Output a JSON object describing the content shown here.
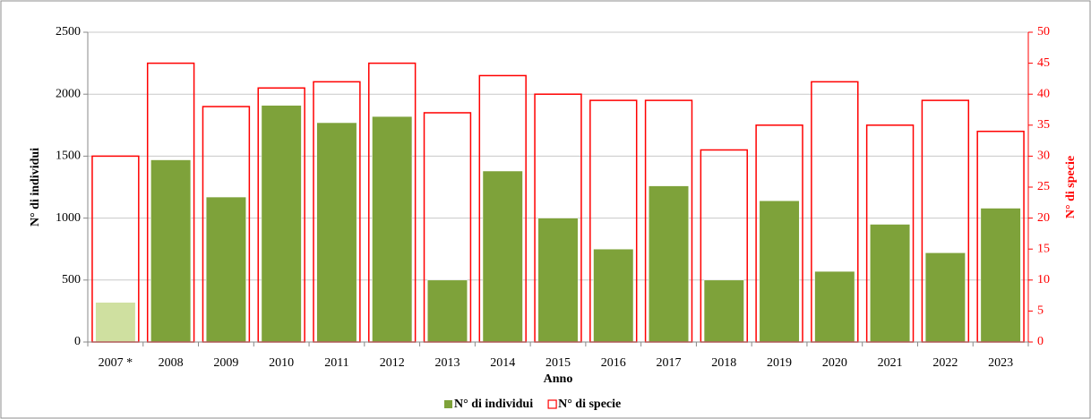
{
  "chart_data": {
    "type": "bar",
    "x_label": "Anno",
    "y_label": "N° di individui",
    "y2_label": "N° di specie",
    "categories": [
      "2007 *",
      "2008",
      "2009",
      "2010",
      "2011",
      "2012",
      "2013",
      "2014",
      "2015",
      "2016",
      "2017",
      "2018",
      "2019",
      "2020",
      "2021",
      "2022",
      "2023"
    ],
    "series": [
      {
        "name": "N° di individui",
        "color": "#7ea23a",
        "colors": [
          "#cfe0a0",
          "#7ea23a",
          "#7ea23a",
          "#7ea23a",
          "#7ea23a",
          "#7ea23a",
          "#7ea23a",
          "#7ea23a",
          "#7ea23a",
          "#7ea23a",
          "#7ea23a",
          "#7ea23a",
          "#7ea23a",
          "#7ea23a",
          "#7ea23a",
          "#7ea23a",
          "#7ea23a"
        ],
        "values": [
          320,
          1470,
          1170,
          1910,
          1770,
          1820,
          500,
          1380,
          1000,
          750,
          1260,
          500,
          1140,
          570,
          950,
          720,
          1080
        ]
      },
      {
        "name": "N° di specie",
        "color": "#ff0000",
        "axis": "y2",
        "style": "outline",
        "values": [
          30,
          45,
          38,
          41,
          42,
          45,
          37,
          43,
          40,
          39,
          39,
          31,
          35,
          42,
          35,
          39,
          34
        ]
      }
    ],
    "ylim": [
      0,
      2500
    ],
    "yticks": [
      0,
      500,
      1000,
      1500,
      2000,
      2500
    ],
    "y2lim": [
      0,
      50
    ],
    "y2ticks": [
      0,
      5,
      10,
      15,
      20,
      25,
      30,
      35,
      40,
      45,
      50
    ],
    "grid": true,
    "legend": "bottom"
  }
}
